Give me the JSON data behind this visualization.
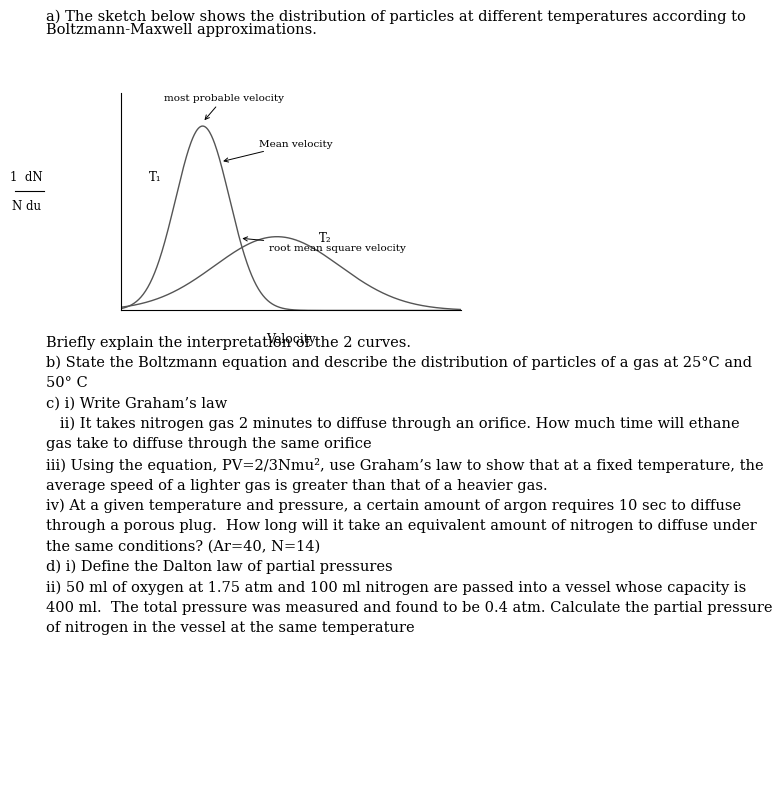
{
  "bg_color": "#ffffff",
  "header_line1": "a) The sketch below shows the distribution of particles at different temperatures according to",
  "header_line2": "Boltzmann-Maxwell approximations.",
  "xlabel_label": "Velocity",
  "curve1_label": "T₁",
  "curve2_label": "T₂",
  "annotation_mpv": "most probable velocity",
  "annotation_mean": "Mean velocity",
  "annotation_rms": "root mean square velocity",
  "ylabel_top": "1  dN",
  "ylabel_bot": "N du",
  "body_text": "Briefly explain the interpretation of the 2 curves.\nb) State the Boltzmann equation and describe the distribution of particles of a gas at 25°C and\n50° C\nc) i) Write Graham’s law\n   ii) It takes nitrogen gas 2 minutes to diffuse through an orifice. How much time will ethane\ngas take to diffuse through the same orifice\niii) Using the equation, PV=2/3Nmu², use Graham’s law to show that at a fixed temperature, the\naverage speed of a lighter gas is greater than that of a heavier gas.\niv) At a given temperature and pressure, a certain amount of argon requires 10 sec to diffuse\nthrough a porous plug.  How long will it take an equivalent amount of nitrogen to diffuse under\nthe same conditions? (Ar=40, N=14)\nd) i) Define the Dalton law of partial pressures\nii) 50 ml of oxygen at 1.75 atm and 100 ml nitrogen are passed into a vessel whose capacity is\n400 ml.  The total pressure was measured and found to be 0.4 atm. Calculate the partial pressure\nof nitrogen in the vessel at the same temperature",
  "font_size": 10.5,
  "curve1_params": [
    1.0,
    1.15,
    0.38
  ],
  "curve2_params": [
    0.4,
    2.2,
    0.88
  ],
  "xmax": 4.8
}
